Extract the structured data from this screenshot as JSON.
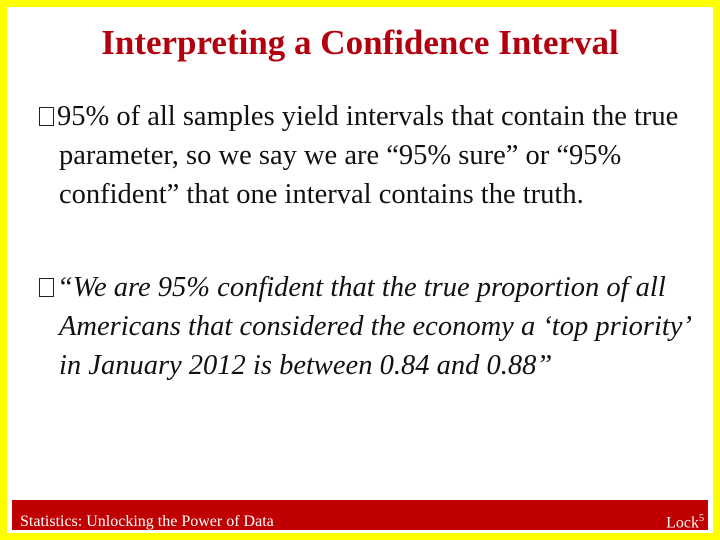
{
  "header": {
    "title": "Interpreting a Confidence Interval"
  },
  "bullets": [
    {
      "text": "95% of all samples yield intervals that contain the true parameter, so we say we are “95% sure” or “95% confident” that one interval contains the truth."
    },
    {
      "text": "“We are 95% confident that the true proportion of all Americans that considered the economy a ‘top priority’ in January 2012 is between 0.84 and 0.88”"
    }
  ],
  "footer": {
    "left": "Statistics: Unlocking the Power of Data",
    "right": {
      "text": "Lock",
      "superscript": "5"
    }
  }
}
